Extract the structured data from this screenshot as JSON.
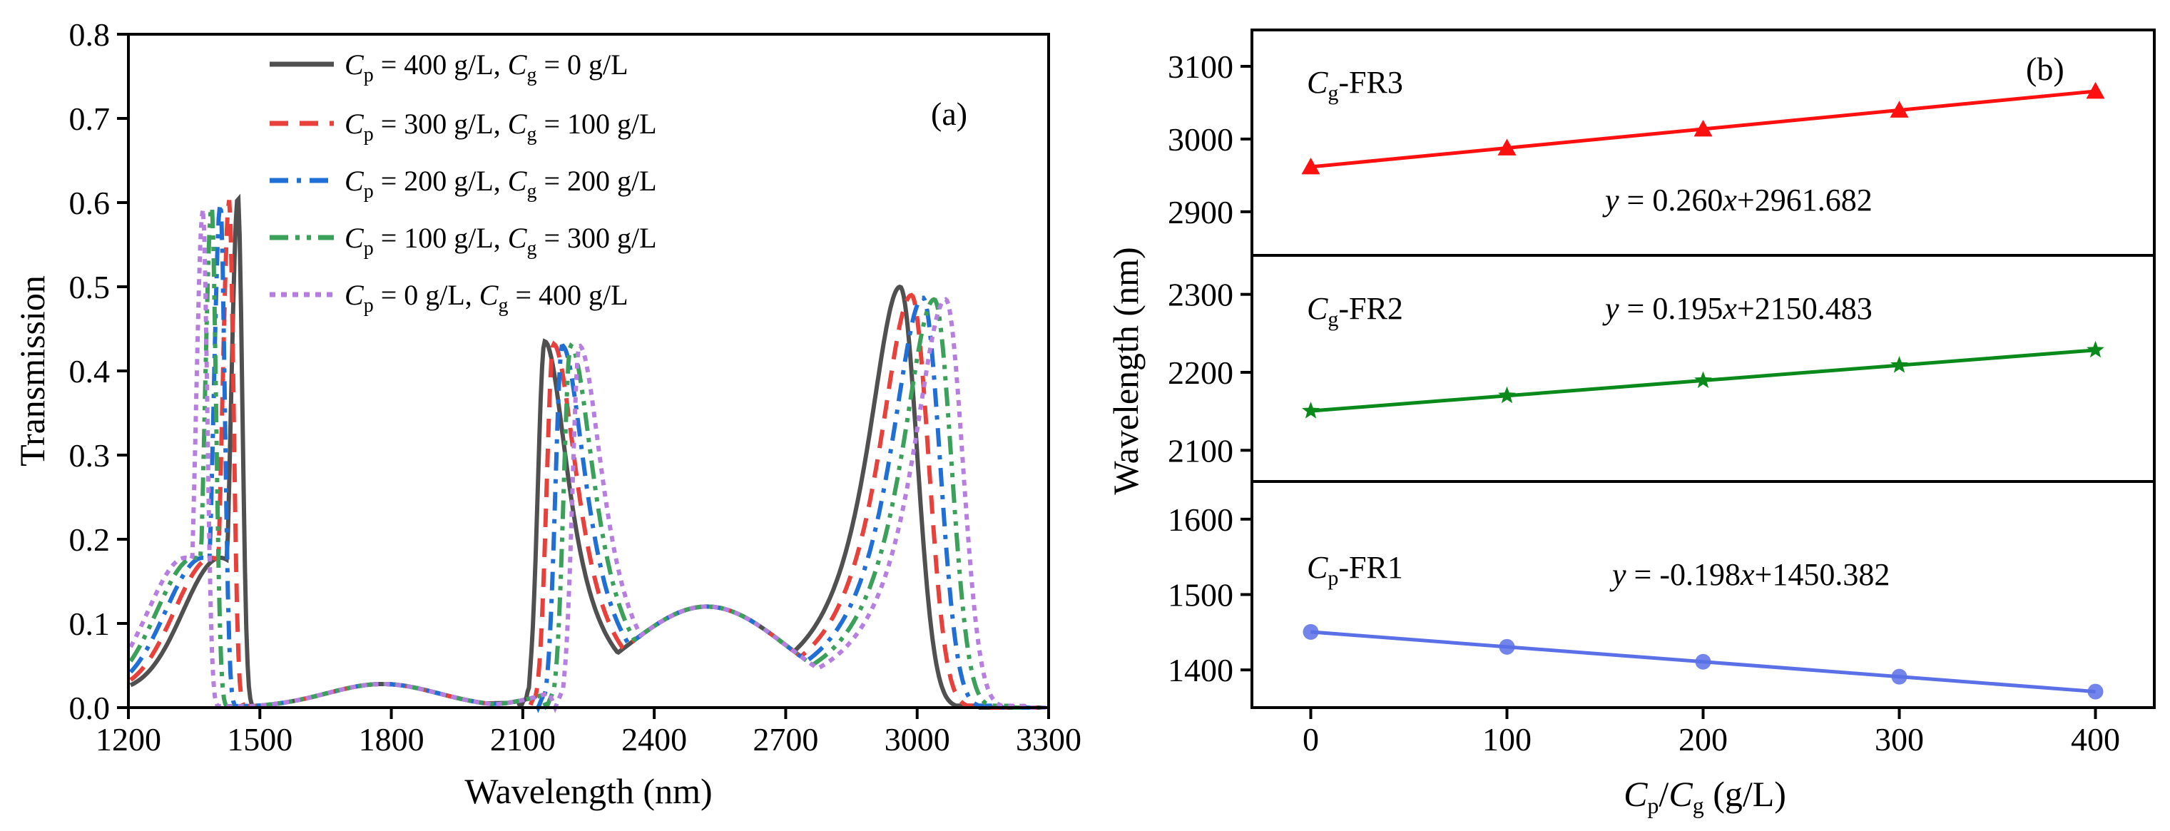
{
  "chart_data": [
    {
      "type": "line",
      "panel_label": "(a)",
      "title": "",
      "xlabel": "Wavelength (nm)",
      "ylabel": "Transmission",
      "xlim": [
        1200,
        3300
      ],
      "ylim": [
        0,
        0.8
      ],
      "x_ticks": [
        "1200",
        "1500",
        "1800",
        "2100",
        "2400",
        "2700",
        "3000",
        "3300"
      ],
      "y_ticks": [
        "0.0",
        "0.1",
        "0.2",
        "0.3",
        "0.4",
        "0.5",
        "0.6",
        "0.7",
        "0.8"
      ],
      "legend_position": "top-center",
      "series": [
        {
          "name": "Cp = 400 g/L, Cg = 0 g/L",
          "legend": {
            "p1": "C",
            "s1": "p",
            "t1": " = 400 g/L,  ",
            "p2": "C",
            "s2": "g",
            "t2": " = 0 g/L"
          },
          "color": "#505050",
          "dash": "solid",
          "shift": 0,
          "peaks": [
            {
              "x": 1450,
              "y": 0.607
            },
            {
              "x": 2150,
              "y": 0.435
            },
            {
              "x": 2961,
              "y": 0.5
            }
          ]
        },
        {
          "name": "Cp = 300 g/L, Cg = 100 g/L",
          "legend": {
            "p1": "C",
            "s1": "p",
            "t1": " = 300 g/L,  ",
            "p2": "C",
            "s2": "g",
            "t2": " = 100 g/L"
          },
          "color": "#e8403a",
          "dash": "dashed",
          "shift": 1,
          "peaks": [
            {
              "x": 1430,
              "y": 0.603
            },
            {
              "x": 2170,
              "y": 0.432
            },
            {
              "x": 2987,
              "y": 0.49
            }
          ]
        },
        {
          "name": "Cp = 200 g/L, Cg = 200 g/L",
          "legend": {
            "p1": "C",
            "s1": "p",
            "t1": " = 200 g/L,  ",
            "p2": "C",
            "s2": "g",
            "t2": " = 200 g/L"
          },
          "color": "#1f6fd6",
          "dash": "dashdot",
          "shift": 2,
          "peaks": [
            {
              "x": 1410,
              "y": 0.6
            },
            {
              "x": 2190,
              "y": 0.43
            },
            {
              "x": 3013,
              "y": 0.487
            }
          ]
        },
        {
          "name": "Cp = 100 g/L, Cg = 300 g/L",
          "legend": {
            "p1": "C",
            "s1": "p",
            "t1": " = 100 g/L,  ",
            "p2": "C",
            "s2": "g",
            "t2": " = 300 g/L"
          },
          "color": "#3aa05a",
          "dash": "dashdotdot",
          "shift": 3,
          "peaks": [
            {
              "x": 1390,
              "y": 0.597
            },
            {
              "x": 2209,
              "y": 0.43
            },
            {
              "x": 3039,
              "y": 0.485
            }
          ]
        },
        {
          "name": "Cp = 0 g/L, Cg = 400 g/L",
          "legend": {
            "p1": "C",
            "s1": "p",
            "t1": " = 0 g/L,       ",
            "p2": "C",
            "s2": "g",
            "t2": " = 400 g/L"
          },
          "color": "#b57ee0",
          "dash": "dotted",
          "shift": 4,
          "peaks": [
            {
              "x": 1370,
              "y": 0.592
            },
            {
              "x": 2229,
              "y": 0.43
            },
            {
              "x": 3065,
              "y": 0.485
            }
          ]
        }
      ]
    },
    {
      "type": "scatter",
      "panel_label": "(b)",
      "xlabel": "Cp/Cg (g/L)",
      "xlabel_parts": {
        "p1": "C",
        "s1": "p",
        "mid": "/",
        "p2": "C",
        "s2": "g",
        "tail": " (g/L)"
      },
      "ylabel": "Wavelength (nm)",
      "xlim": [
        -30,
        430
      ],
      "x": [
        0,
        100,
        200,
        300,
        400
      ],
      "x_ticks": [
        "0",
        "100",
        "200",
        "300",
        "400"
      ],
      "subplots": [
        {
          "name": "Cg-FR3",
          "label_main": "C",
          "label_sub": "g",
          "label_tail": "-FR3",
          "color": "#ff1010",
          "marker": "triangle",
          "values": [
            2961.7,
            2987.7,
            3013.7,
            3039.7,
            3065.7
          ],
          "ylim": [
            2840,
            3150
          ],
          "y_ticks": [
            "2900",
            "3000",
            "3100"
          ],
          "fit_label": {
            "y": "y",
            "eq": " = 0.260",
            "x": "x",
            "rest": "+2961.682"
          }
        },
        {
          "name": "Cg-FR2",
          "label_main": "C",
          "label_sub": "g",
          "label_tail": "-FR2",
          "color": "#0a8a1a",
          "marker": "star",
          "values": [
            2150.5,
            2170.0,
            2189.5,
            2209.0,
            2228.5
          ],
          "ylim": [
            2060,
            2350
          ],
          "y_ticks": [
            "2100",
            "2200",
            "2300"
          ],
          "fit_label": {
            "y": "y",
            "eq": " = 0.195",
            "x": "x",
            "rest": "+2150.483"
          }
        },
        {
          "name": "Cp-FR1",
          "label_main": "C",
          "label_sub": "p",
          "label_tail": "-FR1",
          "color": "#5b70e6",
          "marker": "circle",
          "values": [
            1450.4,
            1430.6,
            1410.8,
            1391.0,
            1371.2
          ],
          "ylim": [
            1350,
            1650
          ],
          "y_ticks": [
            "1400",
            "1500",
            "1600"
          ],
          "fit_label": {
            "y": "y",
            "eq": " = -0.198",
            "x": "x",
            "rest": "+1450.382"
          }
        }
      ]
    }
  ]
}
